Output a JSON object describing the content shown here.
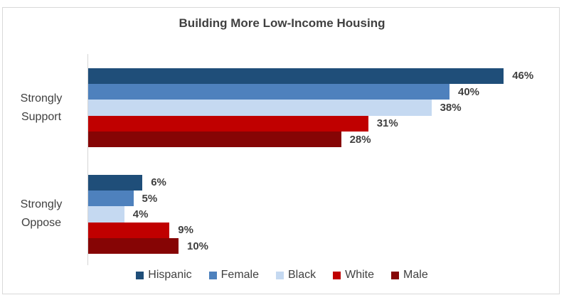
{
  "chart_data": {
    "type": "bar",
    "orientation": "horizontal",
    "title": "Building More Low-Income Housing",
    "categories": [
      "Strongly Support",
      "Strongly Oppose"
    ],
    "series": [
      {
        "name": "Hispanic",
        "color": "#1F4E79",
        "values": [
          46,
          6
        ]
      },
      {
        "name": "Female",
        "color": "#4E81BD",
        "values": [
          40,
          5
        ]
      },
      {
        "name": "Black",
        "color": "#C5D9F1",
        "values": [
          38,
          4
        ]
      },
      {
        "name": "White",
        "color": "#C00000",
        "values": [
          31,
          9
        ]
      },
      {
        "name": "Male",
        "color": "#860505",
        "values": [
          28,
          10
        ]
      }
    ],
    "data_labels": [
      [
        "46%",
        "40%",
        "38%",
        "31%",
        "28%"
      ],
      [
        "6%",
        "5%",
        "4%",
        "9%",
        "10%"
      ]
    ],
    "data_label_format": "{value}%",
    "xlim": [
      0,
      50
    ],
    "x_axis_visible": false,
    "grid": false,
    "legend_position": "bottom"
  },
  "style_colors": {
    "text": "#404040",
    "axis_line": "#D6D6D6",
    "frame_border": "#D9D9D9",
    "background": "#FFFFFF"
  }
}
